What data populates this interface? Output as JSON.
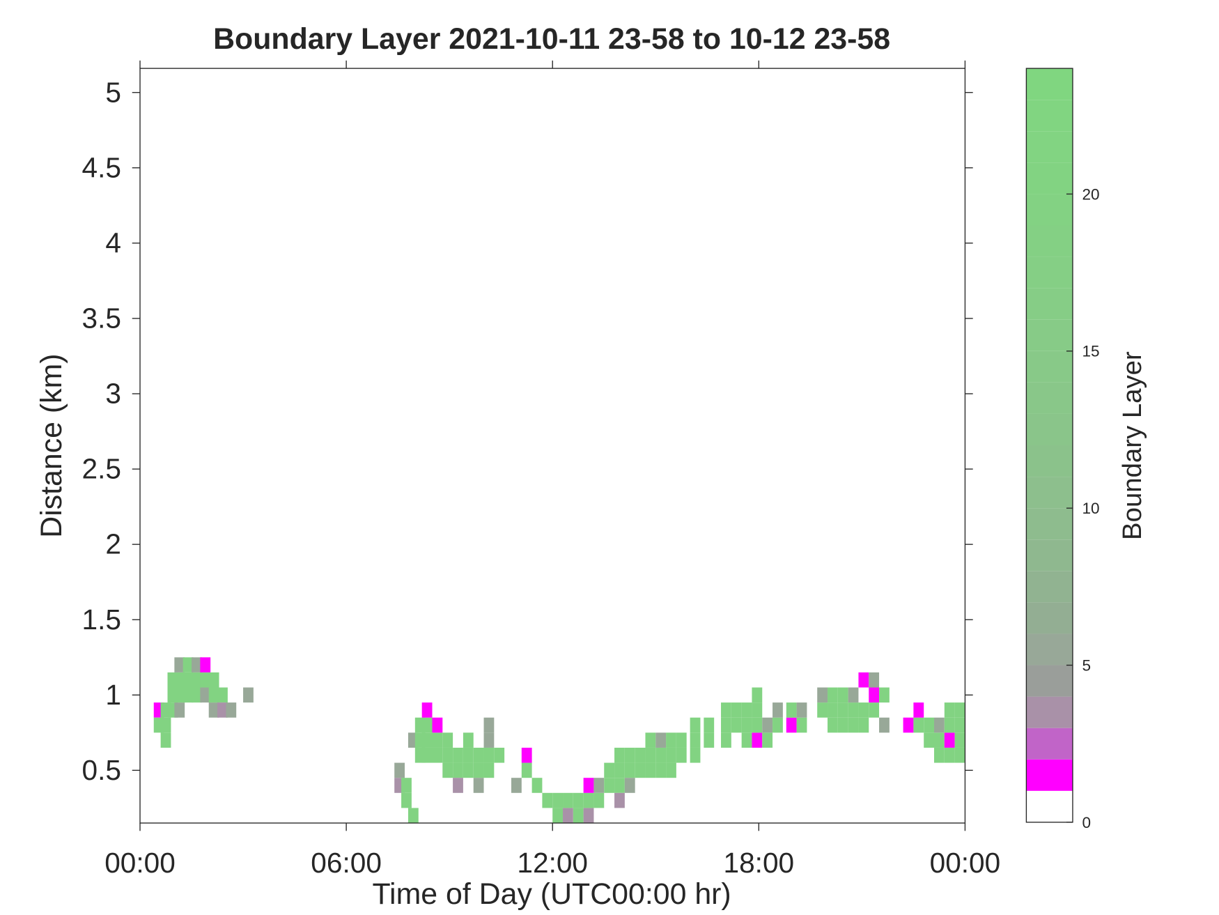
{
  "chart_data": {
    "type": "heatmap",
    "title": "Boundary Layer 2021-10-11 23-58 to 10-12 23-58",
    "x_label": "Time of Day (UTC00:00 hr)",
    "y_label": "Distance (km)",
    "xlim": [
      0,
      24
    ],
    "xticks": [
      {
        "value": 0,
        "label": "00:00"
      },
      {
        "value": 6,
        "label": "06:00"
      },
      {
        "value": 12,
        "label": "12:00"
      },
      {
        "value": 18,
        "label": "18:00"
      },
      {
        "value": 24,
        "label": "00:00"
      }
    ],
    "ylim": [
      0.15,
      5.16
    ],
    "yticks": [
      0.5,
      1,
      1.5,
      2,
      2.5,
      3,
      3.5,
      4,
      4.5,
      5
    ],
    "colorbar": {
      "label": "Boundary Layer",
      "lim": [
        0,
        24
      ],
      "ticks": [
        0,
        5,
        10,
        15,
        20
      ]
    },
    "colormap": [
      "#ffffff",
      "#ff00ff",
      "#c164c8",
      "#a991a8",
      "#9a9e9a",
      "#98a898",
      "#93ae93",
      "#91b391",
      "#8fb88f",
      "#8ebc8e",
      "#8dbf8d",
      "#8bc28b",
      "#8ac58a",
      "#89c789",
      "#88c988",
      "#87cb87",
      "#86cd86",
      "#85cf85",
      "#84d084",
      "#83d283",
      "#82d382",
      "#82d482",
      "#81d581",
      "#80d680"
    ],
    "cells": {
      "x": [
        0.4,
        0.4,
        0.6,
        0.6,
        0.6,
        0.8,
        0.8,
        0.8,
        1.0,
        1.0,
        1.0,
        1.0,
        1.25,
        1.25,
        1.25,
        1.5,
        1.5,
        1.5,
        1.75,
        1.75,
        1.75,
        2.0,
        2.0,
        2.0,
        2.25,
        2.25,
        2.5,
        3.0,
        7.4,
        7.4,
        7.6,
        7.6,
        7.8,
        7.8,
        8.0,
        8.0,
        8.0,
        8.2,
        8.2,
        8.2,
        8.2,
        8.5,
        8.5,
        8.5,
        8.8,
        8.8,
        8.8,
        9.1,
        9.1,
        9.1,
        9.4,
        9.4,
        9.4,
        9.7,
        9.7,
        9.7,
        10.0,
        10.0,
        10.0,
        10.0,
        10.3,
        10.8,
        11.1,
        11.1,
        11.4,
        11.7,
        12.0,
        12.0,
        12.3,
        12.3,
        12.6,
        12.6,
        12.9,
        12.9,
        12.9,
        13.2,
        13.2,
        13.5,
        13.5,
        13.8,
        13.8,
        13.8,
        13.8,
        14.1,
        14.1,
        14.1,
        14.4,
        14.4,
        14.7,
        14.7,
        14.7,
        15.0,
        15.0,
        15.0,
        15.3,
        15.3,
        15.3,
        15.6,
        15.6,
        16.0,
        16.0,
        16.0,
        16.4,
        16.4,
        16.9,
        16.9,
        16.9,
        17.2,
        17.2,
        17.5,
        17.5,
        17.5,
        17.8,
        17.8,
        17.8,
        17.8,
        18.1,
        18.1,
        18.4,
        18.4,
        18.8,
        18.8,
        19.1,
        19.1,
        19.7,
        19.7,
        20.0,
        20.0,
        20.0,
        20.3,
        20.3,
        20.3,
        20.6,
        20.6,
        20.6,
        20.9,
        20.9,
        20.9,
        21.2,
        21.2,
        21.2,
        21.5,
        21.5,
        22.2,
        22.5,
        22.5,
        22.8,
        22.8,
        23.1,
        23.1,
        23.1,
        23.4,
        23.4,
        23.4,
        23.4,
        23.7,
        23.7,
        23.7,
        23.7
      ],
      "y": [
        0.85,
        0.75,
        0.65,
        0.75,
        0.85,
        0.85,
        0.95,
        1.05,
        0.85,
        0.95,
        1.05,
        1.15,
        0.95,
        1.05,
        1.15,
        0.95,
        1.05,
        1.15,
        0.95,
        1.05,
        1.15,
        0.85,
        0.95,
        1.05,
        0.95,
        0.85,
        0.85,
        0.95,
        0.35,
        0.45,
        0.25,
        0.35,
        0.15,
        0.65,
        0.55,
        0.65,
        0.75,
        0.55,
        0.65,
        0.75,
        0.85,
        0.55,
        0.65,
        0.75,
        0.45,
        0.55,
        0.65,
        0.45,
        0.55,
        0.35,
        0.45,
        0.55,
        0.65,
        0.45,
        0.55,
        0.35,
        0.45,
        0.55,
        0.65,
        0.75,
        0.55,
        0.35,
        0.45,
        0.55,
        0.35,
        0.25,
        0.15,
        0.25,
        0.15,
        0.25,
        0.15,
        0.25,
        0.15,
        0.25,
        0.35,
        0.25,
        0.35,
        0.35,
        0.45,
        0.35,
        0.45,
        0.55,
        0.25,
        0.45,
        0.55,
        0.35,
        0.45,
        0.55,
        0.45,
        0.55,
        0.65,
        0.45,
        0.55,
        0.65,
        0.45,
        0.55,
        0.65,
        0.55,
        0.65,
        0.55,
        0.65,
        0.75,
        0.65,
        0.75,
        0.65,
        0.75,
        0.85,
        0.75,
        0.85,
        0.65,
        0.75,
        0.85,
        0.65,
        0.75,
        0.85,
        0.95,
        0.75,
        0.65,
        0.75,
        0.85,
        0.75,
        0.85,
        0.75,
        0.85,
        0.85,
        0.95,
        0.75,
        0.85,
        0.95,
        0.75,
        0.85,
        0.95,
        0.75,
        0.85,
        0.95,
        0.75,
        0.85,
        1.05,
        0.85,
        0.95,
        1.05,
        0.75,
        0.95,
        0.75,
        0.75,
        0.85,
        0.65,
        0.75,
        0.55,
        0.65,
        0.75,
        0.65,
        0.75,
        0.85,
        0.55,
        0.55,
        0.65,
        0.75,
        0.85
      ],
      "values": [
        1.5,
        20,
        20,
        20,
        20,
        20,
        20,
        20,
        5,
        20,
        20,
        5,
        20,
        20,
        20,
        20,
        20,
        5,
        5,
        20,
        1.5,
        5,
        20,
        20,
        20,
        3.5,
        5,
        5,
        3.5,
        5,
        20,
        20,
        20,
        5,
        20,
        20,
        20,
        20,
        20,
        20,
        1.5,
        20,
        20,
        1.5,
        20,
        20,
        20,
        20,
        20,
        3.5,
        20,
        20,
        20,
        20,
        20,
        5,
        20,
        20,
        5,
        5,
        20,
        5,
        20,
        1.5,
        20,
        20,
        20,
        20,
        3.5,
        20,
        20,
        20,
        3.5,
        20,
        1.5,
        20,
        5,
        20,
        20,
        20,
        20,
        20,
        3.5,
        20,
        20,
        5,
        20,
        20,
        20,
        20,
        20,
        20,
        20,
        5,
        20,
        20,
        20,
        20,
        20,
        20,
        20,
        20,
        20,
        20,
        20,
        20,
        20,
        20,
        20,
        20,
        20,
        20,
        1.5,
        20,
        20,
        20,
        5,
        20,
        20,
        5,
        1.5,
        20,
        20,
        5,
        20,
        5,
        20,
        20,
        20,
        20,
        20,
        20,
        20,
        20,
        5,
        20,
        20,
        1.5,
        20,
        1.5,
        5,
        5,
        20,
        1.5,
        20,
        1.5,
        20,
        20,
        20,
        20,
        5,
        1.5,
        20,
        20,
        20,
        20,
        20,
        20,
        20
      ]
    }
  }
}
